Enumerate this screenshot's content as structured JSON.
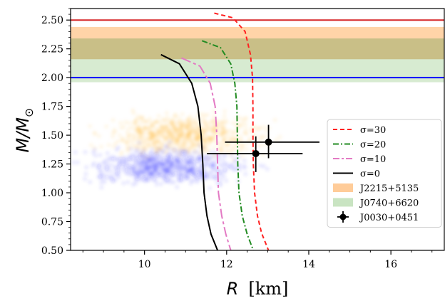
{
  "chart_data": {
    "type": "line",
    "title": "",
    "xlabel": {
      "symbol": "R",
      "unit": "[km]"
    },
    "ylabel": {
      "symbol": "M/M",
      "subscript": "⊙"
    },
    "xlim": [
      8.2,
      17.3
    ],
    "ylim": [
      0.5,
      2.6
    ],
    "x_ticks": [
      10,
      12,
      14,
      16
    ],
    "x_tick_labels": [
      "10",
      "12",
      "14",
      "16"
    ],
    "y_ticks": [
      0.5,
      0.75,
      1.0,
      1.25,
      1.5,
      1.75,
      2.0,
      2.25,
      2.5
    ],
    "y_tick_labels": [
      "0.50",
      "0.75",
      "1.00",
      "1.25",
      "1.50",
      "1.75",
      "2.00",
      "2.25",
      "2.50"
    ],
    "grid": false,
    "legend_position": "lower-right",
    "horizontal_lines": [
      {
        "y": 2.5,
        "color": "#d62728"
      },
      {
        "y": 2.0,
        "color": "#0000ff"
      }
    ],
    "bands": [
      {
        "name": "J2215+5135",
        "y_range": [
          2.16,
          2.44
        ],
        "color": "#ffcc99"
      },
      {
        "name": "J0740+6620",
        "y_range": [
          1.96,
          2.34
        ],
        "color": "#c9e4c2"
      }
    ],
    "clouds": [
      {
        "color": "#ffa500",
        "center": [
          11.0,
          1.5
        ],
        "spread": [
          1.6,
          0.14
        ]
      },
      {
        "color": "#2222ff",
        "center": [
          10.5,
          1.23
        ],
        "spread": [
          1.6,
          0.12
        ]
      }
    ],
    "series": [
      {
        "name": "σ=30",
        "color": "#ff2020",
        "dash": "6,4",
        "points": [
          [
            11.7,
            2.56
          ],
          [
            12.15,
            2.52
          ],
          [
            12.45,
            2.4
          ],
          [
            12.58,
            2.2
          ],
          [
            12.63,
            2.0
          ],
          [
            12.64,
            1.75
          ],
          [
            12.64,
            1.5
          ],
          [
            12.65,
            1.25
          ],
          [
            12.68,
            1.0
          ],
          [
            12.75,
            0.8
          ],
          [
            12.85,
            0.65
          ],
          [
            13.02,
            0.5
          ]
        ]
      },
      {
        "name": "σ=20",
        "color": "#228b22",
        "dash": "8,3,2,3",
        "points": [
          [
            11.4,
            2.32
          ],
          [
            11.85,
            2.26
          ],
          [
            12.1,
            2.12
          ],
          [
            12.2,
            1.95
          ],
          [
            12.25,
            1.75
          ],
          [
            12.26,
            1.5
          ],
          [
            12.27,
            1.25
          ],
          [
            12.3,
            1.0
          ],
          [
            12.38,
            0.8
          ],
          [
            12.5,
            0.64
          ],
          [
            12.65,
            0.5
          ]
        ]
      },
      {
        "name": "σ=10",
        "color": "#e37ac4",
        "dash": "14,4,4,4",
        "points": [
          [
            10.9,
            2.17
          ],
          [
            11.35,
            2.1
          ],
          [
            11.6,
            1.95
          ],
          [
            11.72,
            1.75
          ],
          [
            11.76,
            1.5
          ],
          [
            11.78,
            1.25
          ],
          [
            11.8,
            1.0
          ],
          [
            11.88,
            0.8
          ],
          [
            11.98,
            0.64
          ],
          [
            12.1,
            0.5
          ]
        ]
      },
      {
        "name": "σ=0",
        "color": "#000000",
        "dash": "",
        "points": [
          [
            10.4,
            2.2
          ],
          [
            10.85,
            2.12
          ],
          [
            11.15,
            1.95
          ],
          [
            11.3,
            1.75
          ],
          [
            11.38,
            1.5
          ],
          [
            11.42,
            1.25
          ],
          [
            11.45,
            1.0
          ],
          [
            11.52,
            0.8
          ],
          [
            11.62,
            0.64
          ],
          [
            11.78,
            0.5
          ]
        ]
      }
    ],
    "errorbars": [
      {
        "name": "J0030+0451",
        "x": 12.71,
        "y": 1.34,
        "xerr": [
          1.19,
          1.14
        ],
        "yerr": [
          0.16,
          0.15
        ]
      },
      {
        "name": "J0030+0451",
        "x": 13.02,
        "y": 1.44,
        "xerr": [
          1.06,
          1.24
        ],
        "yerr": [
          0.14,
          0.15
        ]
      }
    ],
    "legend": [
      {
        "label": "σ=30",
        "kind": "line",
        "color": "#ff2020",
        "dash": "6,4"
      },
      {
        "label": "σ=20",
        "kind": "line",
        "color": "#228b22",
        "dash": "8,3,2,3"
      },
      {
        "label": "σ=10",
        "kind": "line",
        "color": "#e37ac4",
        "dash": "14,4,4,4"
      },
      {
        "label": "σ=0",
        "kind": "line",
        "color": "#000000",
        "dash": ""
      },
      {
        "label": "J2215+5135",
        "kind": "patch",
        "color": "#ffcc99"
      },
      {
        "label": "J0740+6620",
        "kind": "patch",
        "color": "#c9e4c2"
      },
      {
        "label": "J0030+0451",
        "kind": "errorbar",
        "color": "#000000"
      }
    ]
  }
}
